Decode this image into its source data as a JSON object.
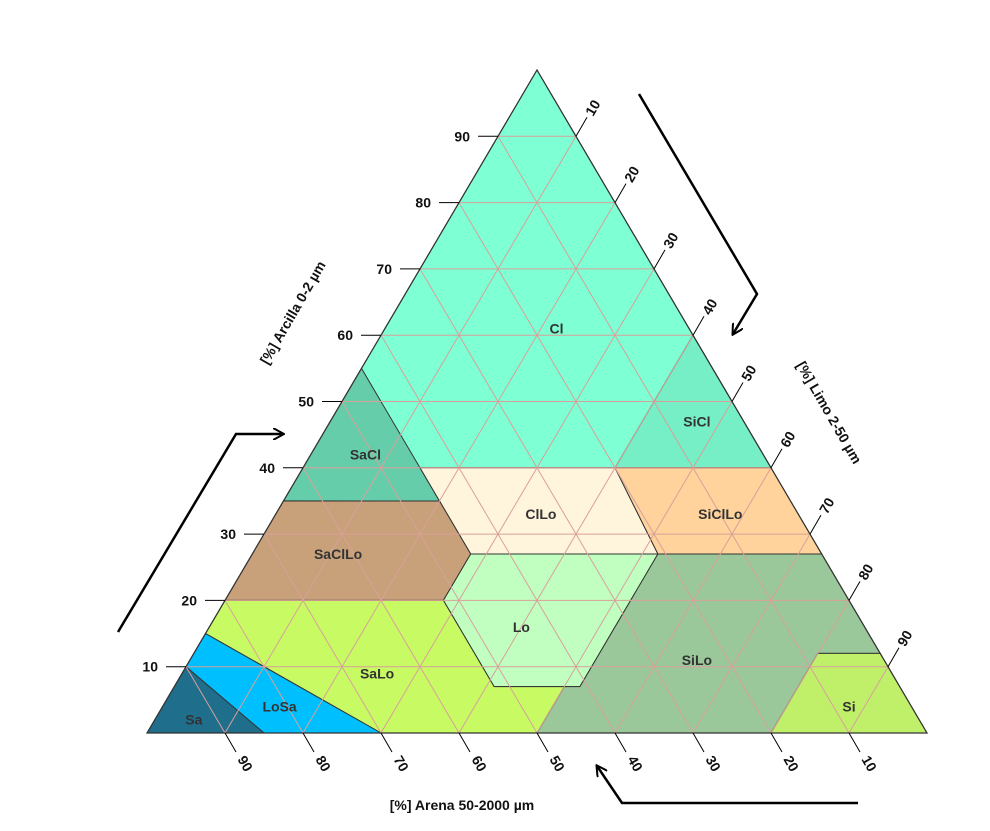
{
  "chart_data": {
    "type": "ternary",
    "colors": {
      "grid": "#d9a09a",
      "border": "#333333",
      "arrow": "#000000"
    },
    "axes": {
      "clay": {
        "title": "[%] Arcilla 0-2 µm",
        "ticks": [
          "10",
          "20",
          "30",
          "40",
          "50",
          "60",
          "70",
          "80",
          "90"
        ]
      },
      "silt": {
        "title": "[%] Limo 2-50 µm",
        "ticks": [
          "10",
          "20",
          "30",
          "40",
          "50",
          "60",
          "70",
          "80",
          "90"
        ]
      },
      "sand": {
        "title": "[%] Arena 50-2000 µm",
        "ticks": [
          "90",
          "80",
          "70",
          "60",
          "50",
          "40",
          "30",
          "20",
          "10"
        ]
      }
    },
    "classes": [
      {
        "label": "Cl",
        "color": "#7fffd4",
        "points": [
          [
            100,
            0,
            0
          ],
          [
            40,
            60,
            0
          ],
          [
            40,
            15,
            45
          ],
          [
            45,
            0,
            55
          ]
        ],
        "label_pos": [
          61,
          22,
          17
        ]
      },
      {
        "label": "SiCl",
        "color": "#76eec6",
        "points": [
          [
            60,
            40,
            0
          ],
          [
            40,
            60,
            0
          ],
          [
            40,
            40,
            20
          ]
        ],
        "label_pos": [
          47,
          47,
          6
        ]
      },
      {
        "label": "SaCl",
        "color": "#66cdaa",
        "points": [
          [
            55,
            0,
            45
          ],
          [
            35,
            0,
            65
          ],
          [
            35,
            20,
            45
          ]
        ],
        "label_pos": [
          42,
          7,
          51
        ]
      },
      {
        "label": "ClLo",
        "color": "#fff5dc",
        "points": [
          [
            40,
            15,
            45
          ],
          [
            40,
            40,
            20
          ],
          [
            27,
            52,
            21
          ],
          [
            27,
            28,
            45
          ],
          [
            35,
            20,
            45
          ]
        ],
        "label_pos": [
          33,
          34,
          33
        ]
      },
      {
        "label": "SiClLo",
        "color": "#ffd39b",
        "points": [
          [
            40,
            40,
            20
          ],
          [
            40,
            60,
            0
          ],
          [
            27,
            73,
            0
          ],
          [
            27,
            52,
            21
          ]
        ],
        "label_pos": [
          33,
          57,
          10
        ]
      },
      {
        "label": "SaClLo",
        "color": "#c8a07a",
        "points": [
          [
            35,
            0,
            65
          ],
          [
            35,
            20,
            45
          ],
          [
            27,
            28,
            45
          ],
          [
            20,
            28,
            52
          ],
          [
            20,
            0,
            80
          ]
        ],
        "label_pos": [
          27,
          11,
          62
        ]
      },
      {
        "label": "Lo",
        "color": "#c1ffc1",
        "points": [
          [
            27,
            28,
            45
          ],
          [
            27,
            52,
            21
          ],
          [
            7,
            52,
            41
          ],
          [
            7,
            41,
            52
          ],
          [
            20,
            28,
            52
          ]
        ],
        "label_pos": [
          16,
          40,
          44
        ]
      },
      {
        "label": "SiLo",
        "color": "#9bc89b",
        "points": [
          [
            27,
            52,
            21
          ],
          [
            27,
            73,
            0
          ],
          [
            12,
            88,
            0
          ],
          [
            12,
            80,
            8
          ],
          [
            0,
            80,
            20
          ],
          [
            0,
            50,
            50
          ],
          [
            7,
            50,
            43
          ],
          [
            7,
            52,
            41
          ]
        ],
        "label_pos": [
          11,
          65,
          24
        ]
      },
      {
        "label": "Si",
        "color": "#c0f06a",
        "points": [
          [
            12,
            80,
            8
          ],
          [
            12,
            88,
            0
          ],
          [
            0,
            100,
            0
          ],
          [
            0,
            80,
            20
          ]
        ],
        "label_pos": [
          4,
          88,
          8
        ]
      },
      {
        "label": "SaLo",
        "color": "#c8fa64",
        "points": [
          [
            20,
            0,
            80
          ],
          [
            20,
            28,
            52
          ],
          [
            7,
            41,
            52
          ],
          [
            7,
            50,
            43
          ],
          [
            0,
            50,
            50
          ],
          [
            0,
            30,
            70
          ],
          [
            15,
            0,
            85
          ]
        ],
        "label_pos": [
          9,
          25,
          66
        ]
      },
      {
        "label": "LoSa",
        "color": "#00bfff",
        "points": [
          [
            15,
            0,
            85
          ],
          [
            0,
            30,
            70
          ],
          [
            0,
            15,
            85
          ],
          [
            10,
            0,
            90
          ]
        ],
        "label_pos": [
          4,
          15,
          81
        ]
      },
      {
        "label": "Sa",
        "color": "#1e6e8c",
        "points": [
          [
            10,
            0,
            90
          ],
          [
            0,
            15,
            85
          ],
          [
            0,
            0,
            100
          ]
        ],
        "label_pos": [
          2,
          5,
          93
        ]
      }
    ]
  }
}
